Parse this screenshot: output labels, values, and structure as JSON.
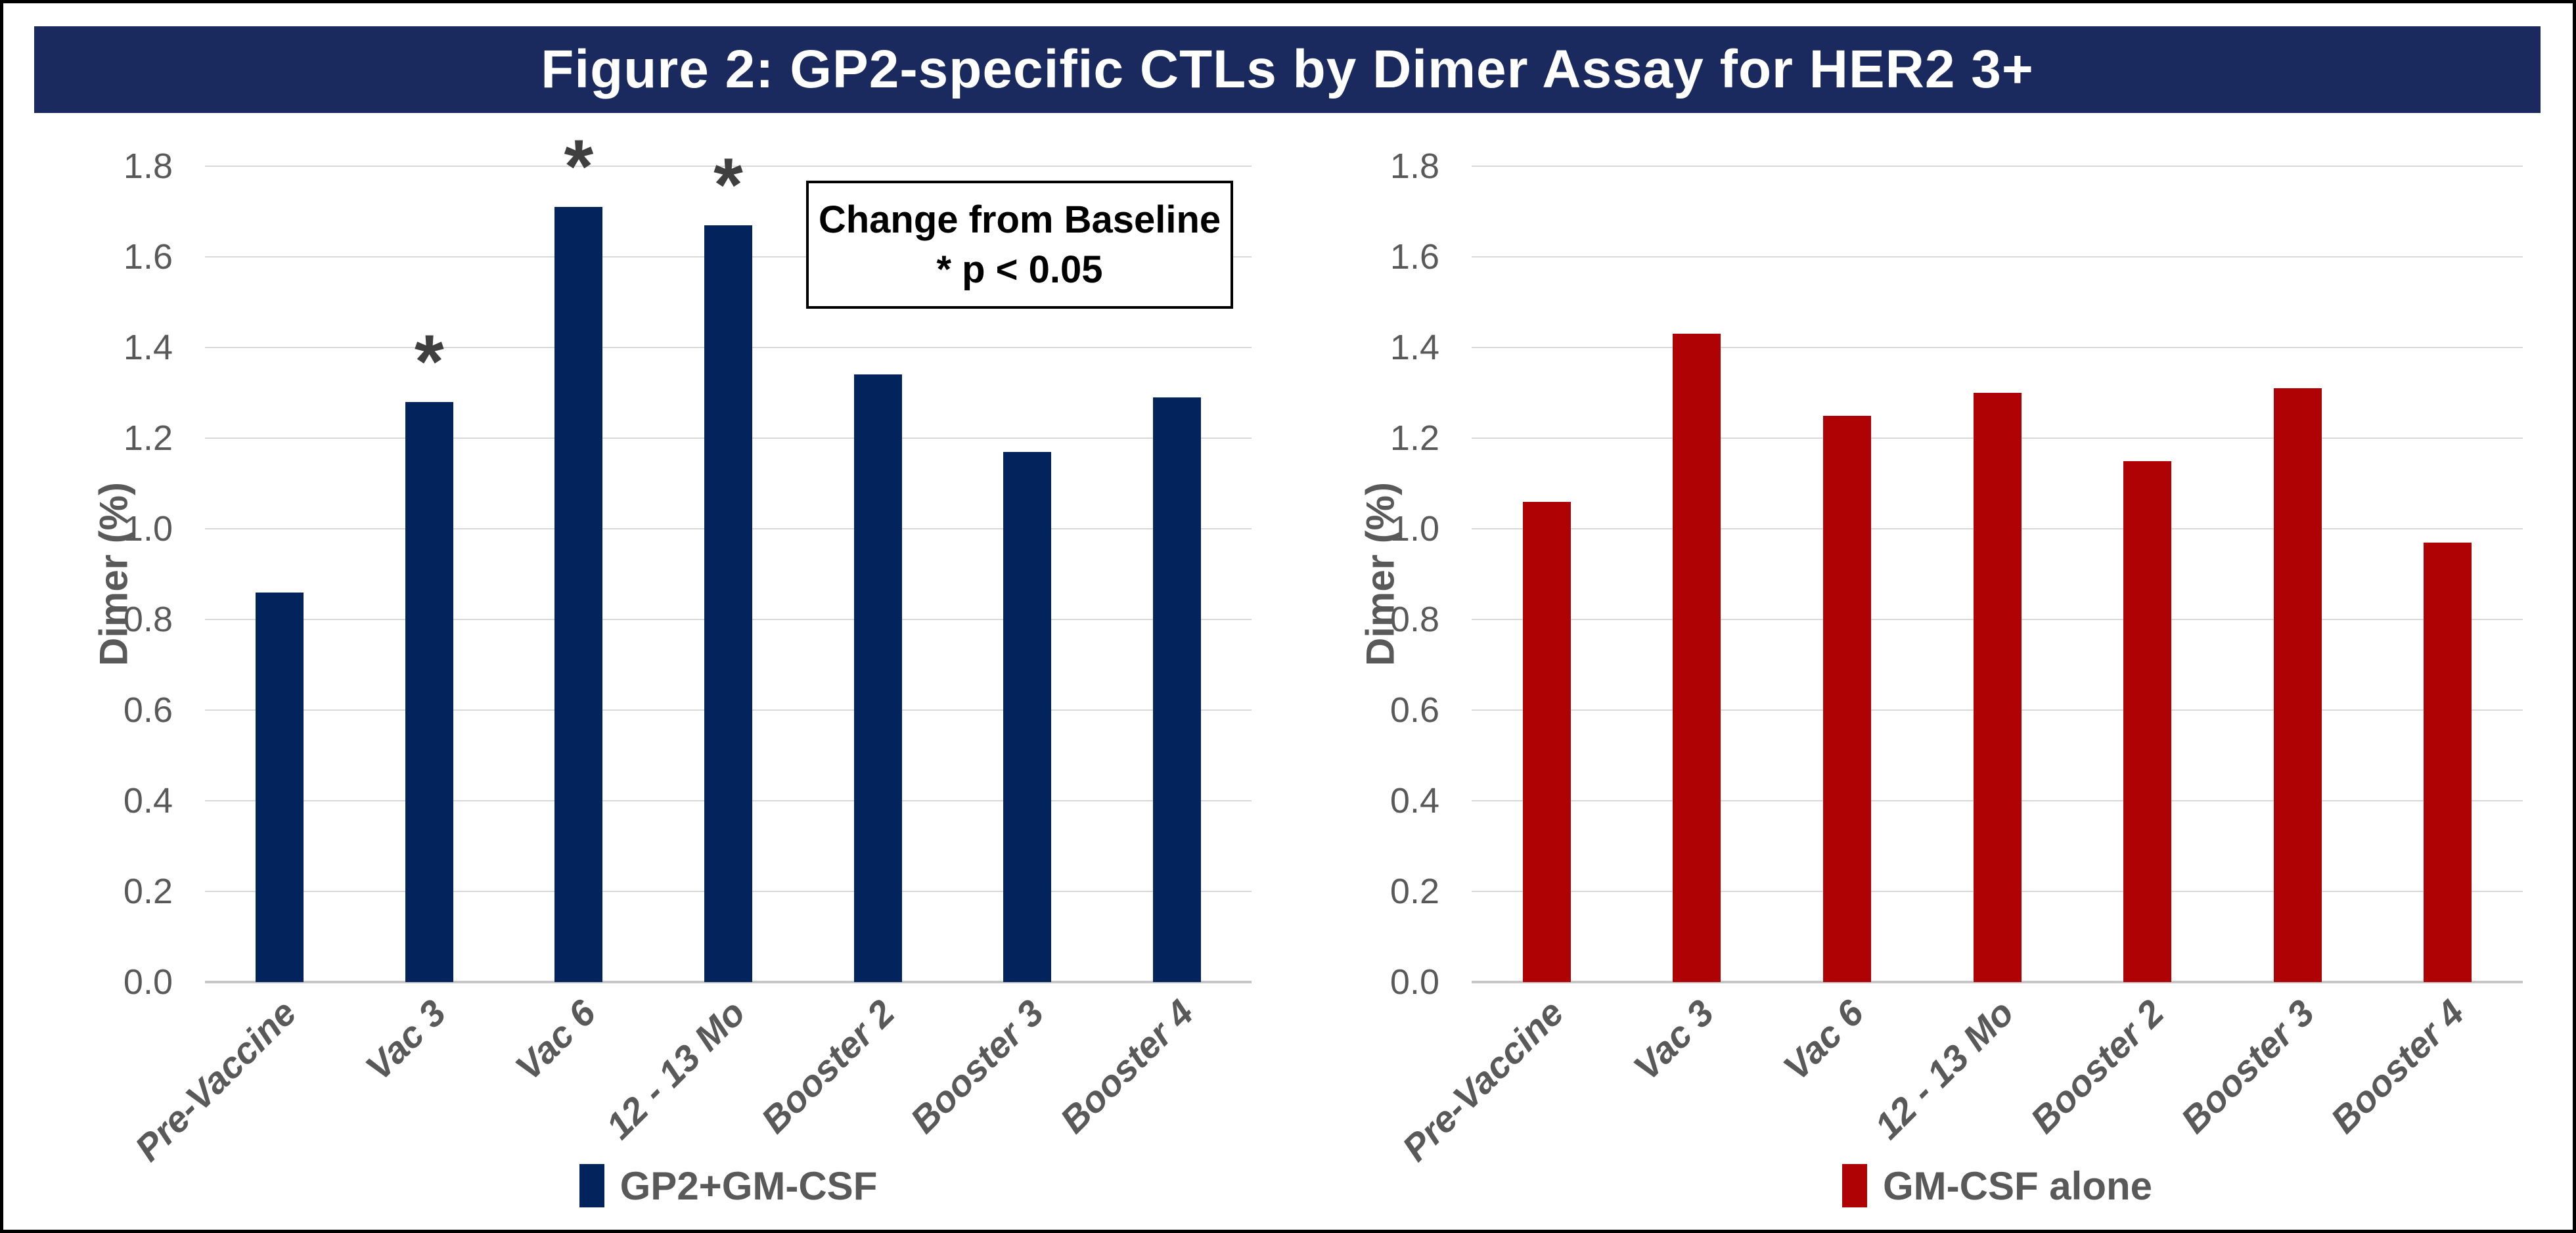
{
  "figure": {
    "title": "Figure 2: GP2-specific CTLs by Dimer Assay for HER2 3+"
  },
  "annotation": {
    "line1": "Change from Baseline",
    "line2": "* p < 0.05"
  },
  "colors": {
    "banner_bg": "#1B2A5E",
    "banner_text": "#FFFFFF",
    "navy_bar": "#03235D",
    "red_bar": "#AE0205",
    "axis_text": "#595959",
    "gridline": "#D9D9D9",
    "baseline": "#C6C6C6",
    "asterisk": "#3F3F3F"
  },
  "chart_data": [
    {
      "type": "bar",
      "panel": "left",
      "categories": [
        "Pre-Vaccine",
        "Vac 3",
        "Vac 6",
        "12 - 13 Mo",
        "Booster 2",
        "Booster 3",
        "Booster 4"
      ],
      "values": [
        0.86,
        1.28,
        1.71,
        1.67,
        1.34,
        1.17,
        1.29
      ],
      "significant_p_lt_0_05": [
        false,
        true,
        true,
        true,
        false,
        false,
        false
      ],
      "significance_marker": "*",
      "ylabel": "Dimer (%)",
      "xlabel": "",
      "ylim": [
        0,
        1.8
      ],
      "ytick_step": 0.2,
      "ytick_labels": [
        "0.0",
        "0.2",
        "0.4",
        "0.6",
        "0.8",
        "1.0",
        "1.2",
        "1.4",
        "1.6",
        "1.8"
      ],
      "grid": true,
      "bar_color": "#03235D",
      "legend": {
        "label": "GP2+GM-CSF",
        "color": "#03235D",
        "position": "bottom"
      }
    },
    {
      "type": "bar",
      "panel": "right",
      "categories": [
        "Pre-Vaccine",
        "Vac 3",
        "Vac 6",
        "12 - 13 Mo",
        "Booster 2",
        "Booster 3",
        "Booster 4"
      ],
      "values": [
        1.06,
        1.43,
        1.25,
        1.3,
        1.15,
        1.31,
        0.97
      ],
      "significant_p_lt_0_05": [
        false,
        false,
        false,
        false,
        false,
        false,
        false
      ],
      "significance_marker": "*",
      "ylabel": "Dimer (%)",
      "xlabel": "",
      "ylim": [
        0,
        1.8
      ],
      "ytick_step": 0.2,
      "ytick_labels": [
        "0.0",
        "0.2",
        "0.4",
        "0.6",
        "0.8",
        "1.0",
        "1.2",
        "1.4",
        "1.6",
        "1.8"
      ],
      "grid": true,
      "bar_color": "#AE0205",
      "legend": {
        "label": "GM-CSF alone",
        "color": "#AE0205",
        "position": "bottom"
      }
    }
  ]
}
